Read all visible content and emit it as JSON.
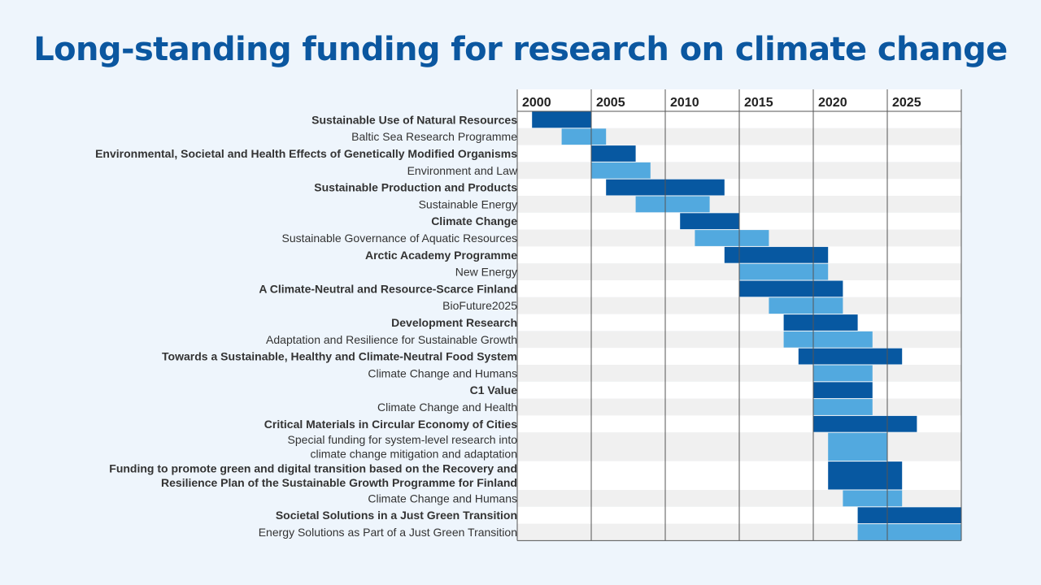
{
  "title": "Long-standing funding for research on climate change",
  "colors": {
    "background": "#eef5fc",
    "title": "#0b57a0",
    "dark_bar": "#0758a1",
    "light_bar": "#52a9df",
    "row_stripe": "#f0f0f0",
    "row_plain": "#ffffff",
    "text": "#333333",
    "gridline": "#555555"
  },
  "chart_data": {
    "type": "gantt",
    "title": "Long-standing funding for research on climate change",
    "xlim": [
      2000,
      2030
    ],
    "x_ticks": [
      "2000",
      "2005",
      "2010",
      "2015",
      "2020",
      "2025"
    ],
    "grid": true,
    "legend": "none",
    "rows": [
      {
        "label": [
          "Sustainable Use of Natural Resources"
        ],
        "bold": true,
        "start": 2001,
        "end": 2005,
        "color": "dark"
      },
      {
        "label": [
          "Baltic Sea Research Programme"
        ],
        "bold": false,
        "start": 2003,
        "end": 2006,
        "color": "light"
      },
      {
        "label": [
          "Environmental, Societal and Health Effects of Genetically Modified Organisms"
        ],
        "bold": true,
        "start": 2005,
        "end": 2008,
        "color": "dark"
      },
      {
        "label": [
          "Environment and Law"
        ],
        "bold": false,
        "start": 2005,
        "end": 2009,
        "color": "light"
      },
      {
        "label": [
          "Sustainable Production and Products"
        ],
        "bold": true,
        "start": 2006,
        "end": 2014,
        "color": "dark"
      },
      {
        "label": [
          "Sustainable Energy"
        ],
        "bold": false,
        "start": 2008,
        "end": 2013,
        "color": "light"
      },
      {
        "label": [
          "Climate Change"
        ],
        "bold": true,
        "start": 2011,
        "end": 2015,
        "color": "dark"
      },
      {
        "label": [
          "Sustainable Governance of Aquatic Resources"
        ],
        "bold": false,
        "start": 2012,
        "end": 2017,
        "color": "light"
      },
      {
        "label": [
          "Arctic Academy Programme"
        ],
        "bold": true,
        "start": 2014,
        "end": 2021,
        "color": "dark"
      },
      {
        "label": [
          "New Energy"
        ],
        "bold": false,
        "start": 2015,
        "end": 2021,
        "color": "light"
      },
      {
        "label": [
          "A Climate-Neutral and Resource-Scarce Finland"
        ],
        "bold": true,
        "start": 2015,
        "end": 2022,
        "color": "dark"
      },
      {
        "label": [
          "BioFuture2025"
        ],
        "bold": false,
        "start": 2017,
        "end": 2022,
        "color": "light"
      },
      {
        "label": [
          "Development Research"
        ],
        "bold": true,
        "start": 2018,
        "end": 2023,
        "color": "dark"
      },
      {
        "label": [
          "Adaptation and Resilience for Sustainable Growth"
        ],
        "bold": false,
        "start": 2018,
        "end": 2024,
        "color": "light"
      },
      {
        "label": [
          "Towards a Sustainable, Healthy and Climate-Neutral Food System"
        ],
        "bold": true,
        "start": 2019,
        "end": 2026,
        "color": "dark"
      },
      {
        "label": [
          "Climate Change and Humans"
        ],
        "bold": false,
        "start": 2020,
        "end": 2024,
        "color": "light"
      },
      {
        "label": [
          "C1 Value"
        ],
        "bold": true,
        "start": 2020,
        "end": 2024,
        "color": "dark"
      },
      {
        "label": [
          "Climate Change and Health"
        ],
        "bold": false,
        "start": 2020,
        "end": 2024,
        "color": "light"
      },
      {
        "label": [
          "Critical Materials in Circular Economy of Cities"
        ],
        "bold": true,
        "start": 2020,
        "end": 2027,
        "color": "dark"
      },
      {
        "label": [
          "Special funding for system-level research into",
          "climate change mitigation and adaptation"
        ],
        "bold": false,
        "start": 2021,
        "end": 2025,
        "color": "light"
      },
      {
        "label": [
          "Funding to promote green and digital transition based on the Recovery and",
          "Resilience Plan of the Sustainable Growth Programme for Finland"
        ],
        "bold": true,
        "start": 2021,
        "end": 2026,
        "color": "dark"
      },
      {
        "label": [
          "Climate Change and Humans"
        ],
        "bold": false,
        "start": 2022,
        "end": 2026,
        "color": "light"
      },
      {
        "label": [
          "Societal Solutions in a Just Green Transition"
        ],
        "bold": true,
        "start": 2023,
        "end": 2030,
        "color": "dark"
      },
      {
        "label": [
          "Energy Solutions as Part of a Just Green Transition"
        ],
        "bold": false,
        "start": 2023,
        "end": 2030,
        "color": "light"
      }
    ]
  }
}
